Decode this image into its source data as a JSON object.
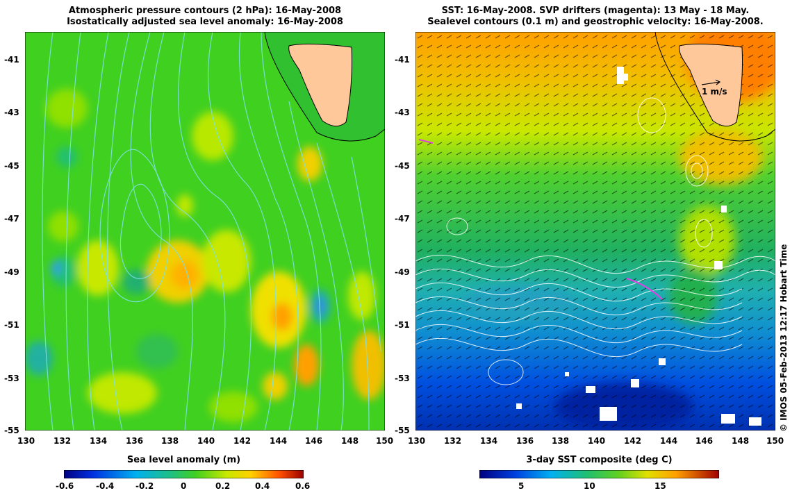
{
  "left_panel": {
    "title_line1": "Atmospheric pressure contours (2 hPa): 16-May-2008",
    "title_line2": "Isostatically adjusted sea level anomaly: 16-May-2008",
    "colorbar_label": "Sea level anomaly (m)",
    "colorbar_ticks": [
      "-0.6",
      "-0.4",
      "-0.2",
      "0",
      "0.2",
      "0.4",
      "0.6"
    ],
    "colors": [
      "#00007f",
      "#0040ff",
      "#00a0ff",
      "#20c070",
      "#30d030",
      "#90e000",
      "#f0e000",
      "#ffa000",
      "#ff4000",
      "#a00000"
    ]
  },
  "right_panel": {
    "title_line1": "SST: 16-May-2008. SVP drifters (magenta): 13 May - 18 May.",
    "title_line2": "Sealevel contours (0.1 m) and geostrophic velocity: 16-May-2008.",
    "colorbar_label": "3-day SST composite (deg C)",
    "colorbar_ticks": [
      "5",
      "10",
      "15"
    ],
    "scale_label": "1 m/s"
  },
  "axes": {
    "lon_ticks": [
      "130",
      "132",
      "134",
      "136",
      "138",
      "140",
      "142",
      "144",
      "146",
      "148",
      "150"
    ],
    "lat_ticks": [
      "-41",
      "-43",
      "-45",
      "-47",
      "-49",
      "-51",
      "-53",
      "-55"
    ]
  },
  "credit": "© IMOS 05-Feb-2013 12:17 Hobart Time"
}
